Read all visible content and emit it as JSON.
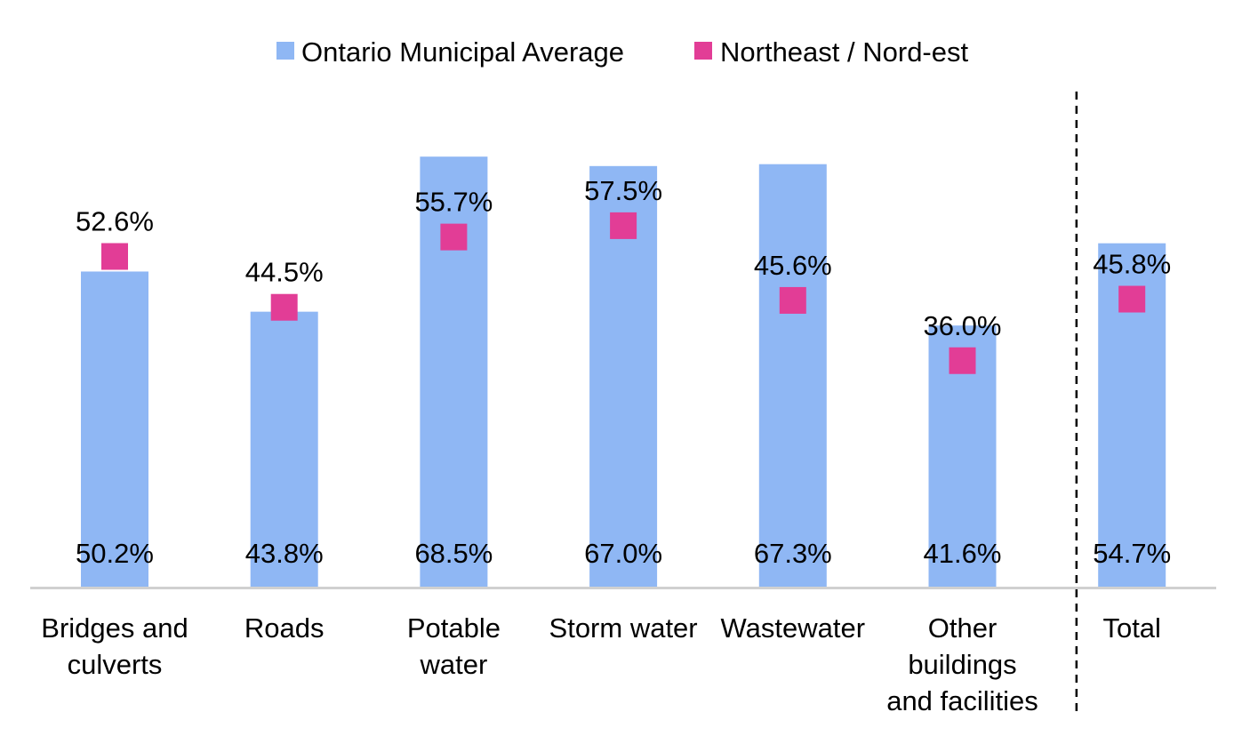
{
  "chart_data": {
    "type": "bar",
    "title": "",
    "xlabel": "",
    "ylabel": "",
    "ylim": [
      0,
      80
    ],
    "grid": false,
    "legend_position": "top-center",
    "categories": [
      [
        "Bridges and",
        "culverts"
      ],
      [
        "Roads"
      ],
      [
        "Potable",
        "water"
      ],
      [
        "Storm water"
      ],
      [
        "Wastewater"
      ],
      [
        "Other",
        "buildings",
        "and facilities"
      ],
      [
        "Total"
      ]
    ],
    "series": [
      {
        "name": "Ontario Municipal Average",
        "type": "bar",
        "color": "#8fb7f4",
        "values": [
          50.2,
          43.8,
          68.5,
          67.0,
          67.3,
          41.6,
          54.7
        ],
        "labels": [
          "50.2%",
          "43.8%",
          "68.5%",
          "67.0%",
          "67.3%",
          "41.6%",
          "54.7%"
        ]
      },
      {
        "name": "Northeast / Nord-est",
        "type": "marker",
        "color": "#e23d96",
        "values": [
          52.6,
          44.5,
          55.7,
          57.5,
          45.6,
          36.0,
          45.8
        ],
        "labels": [
          "52.6%",
          "44.5%",
          "55.7%",
          "57.5%",
          "45.6%",
          "36.0%",
          "45.8%"
        ]
      }
    ],
    "separator_before_index": 6,
    "baseline_color": "#d0d0d0",
    "separator_color": "#000000"
  }
}
